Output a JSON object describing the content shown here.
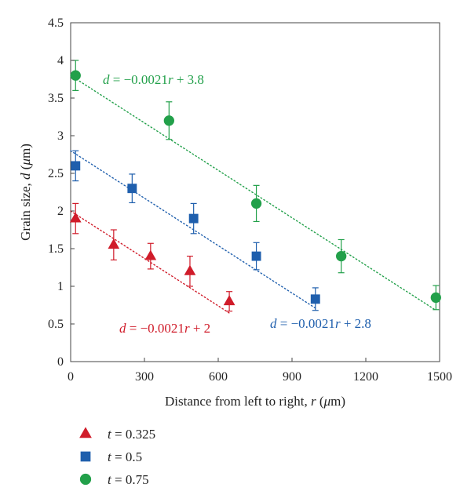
{
  "chart_data": {
    "type": "scatter",
    "title": "",
    "xlabel": "Distance from left to right, r (μm)",
    "xlabel_parts": [
      "Distance from left to right, ",
      "r",
      " (",
      "μ",
      "m)"
    ],
    "ylabel": "Grain size, d (μm)",
    "ylabel_parts": [
      "Grain size, ",
      "d",
      " (",
      "μ",
      "m)"
    ],
    "xlim": [
      0,
      1500
    ],
    "ylim": [
      0,
      4.5
    ],
    "x_ticks": [
      0,
      300,
      600,
      900,
      1200,
      1500
    ],
    "x_tick_labels": [
      "0",
      "300",
      "600",
      "900",
      "1200",
      "1500"
    ],
    "y_ticks": [
      0,
      0.5,
      1,
      1.5,
      2,
      2.5,
      3,
      3.5,
      4,
      4.5
    ],
    "y_tick_labels": [
      "0",
      "0.5",
      "1",
      "1.5",
      "2",
      "2.5",
      "3",
      "3.5",
      "4",
      "4.5"
    ],
    "grid": false,
    "legend_position": "below-left",
    "series": [
      {
        "name": "t = 0.325",
        "name_parts": [
          "t",
          " = 0.325"
        ],
        "marker": "triangle",
        "color": "#d01c2a",
        "x": [
          20,
          175,
          325,
          485,
          645
        ],
        "y": [
          1.9,
          1.55,
          1.4,
          1.2,
          0.8
        ],
        "err": [
          0.2,
          0.2,
          0.17,
          0.2,
          0.13
        ],
        "fit": {
          "slope": -0.0021,
          "intercept": 2.0,
          "x_range": [
            0,
            645
          ]
        },
        "equation": "d = −0.0021r + 2",
        "equation_parts": [
          "d",
          " = −0.0021",
          "r",
          " + 2"
        ]
      },
      {
        "name": "t = 0.5",
        "name_parts": [
          "t",
          " = 0.5"
        ],
        "marker": "square",
        "color": "#1f5fad",
        "x": [
          20,
          250,
          500,
          755,
          995
        ],
        "y": [
          2.6,
          2.3,
          1.9,
          1.4,
          0.83
        ],
        "err": [
          0.2,
          0.19,
          0.2,
          0.18,
          0.15
        ],
        "fit": {
          "slope": -0.0021,
          "intercept": 2.8,
          "x_range": [
            0,
            995
          ]
        },
        "equation": "d = −0.0021r + 2.8",
        "equation_parts": [
          "d",
          " = −0.0021",
          "r",
          " + 2.8"
        ]
      },
      {
        "name": "t = 0.75",
        "name_parts": [
          "t",
          " = 0.75"
        ],
        "marker": "circle",
        "color": "#22a04a",
        "x": [
          20,
          400,
          755,
          1100,
          1485
        ],
        "y": [
          3.8,
          3.2,
          2.1,
          1.4,
          0.85
        ],
        "err": [
          0.2,
          0.25,
          0.24,
          0.22,
          0.16
        ],
        "fit": {
          "slope": -0.0021,
          "intercept": 3.8,
          "x_range": [
            0,
            1485
          ]
        },
        "equation": "d = −0.0021r + 3.8",
        "equation_parts": [
          "d",
          " = −0.0021",
          "r",
          " + 3.8"
        ]
      }
    ]
  }
}
